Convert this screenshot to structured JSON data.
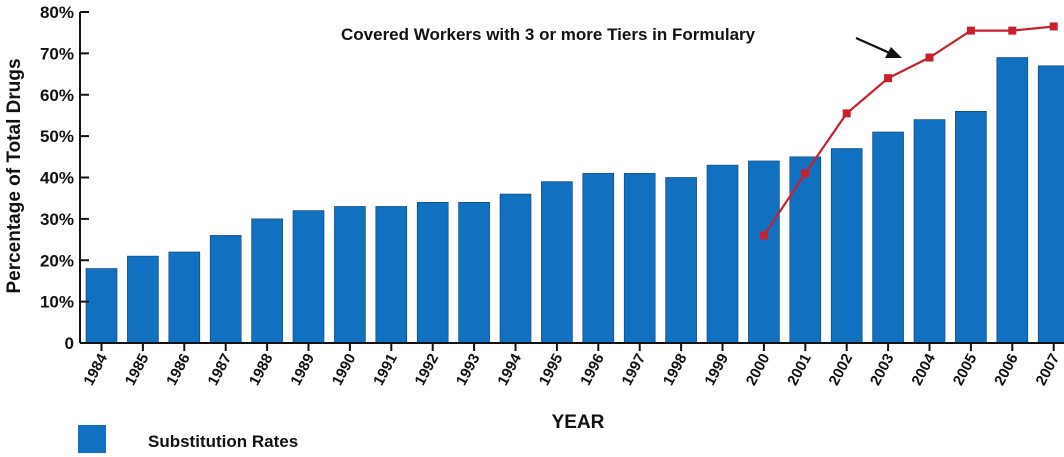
{
  "chart_data": {
    "type": "bar",
    "categories": [
      "1984",
      "1985",
      "1986",
      "1987",
      "1988",
      "1989",
      "1990",
      "1991",
      "1992",
      "1993",
      "1994",
      "1995",
      "1996",
      "1997",
      "1998",
      "1999",
      "2000",
      "2001",
      "2002",
      "2003",
      "2004",
      "2005",
      "2006",
      "2007"
    ],
    "series": [
      {
        "name": "Substitution Rates",
        "type": "bar",
        "color": "#1170c0",
        "values": [
          18,
          21,
          22,
          26,
          30,
          32,
          33,
          33,
          34,
          34,
          36,
          39,
          41,
          41,
          40,
          43,
          44,
          45,
          47,
          51,
          54,
          56,
          69,
          67
        ]
      },
      {
        "name": "Covered Workers with 3 or more Tiers in Formulary",
        "type": "line",
        "color": "#c8202e",
        "values": [
          null,
          null,
          null,
          null,
          null,
          null,
          null,
          null,
          null,
          null,
          null,
          null,
          null,
          null,
          null,
          null,
          26,
          41,
          55.5,
          64,
          69,
          75.5,
          75.5,
          76.5
        ]
      }
    ],
    "ylabel": "Percentage of Total Drugs",
    "xlabel": "YEAR",
    "ylim": [
      0,
      80
    ],
    "yticks": [
      "0",
      "10%",
      "20%",
      "30%",
      "40%",
      "50%",
      "60%",
      "70%",
      "80%"
    ],
    "annotation": "Covered Workers with 3 or more Tiers in Formulary",
    "legend": {
      "label": "Substitution Rates",
      "placement": "bottom-left"
    }
  }
}
